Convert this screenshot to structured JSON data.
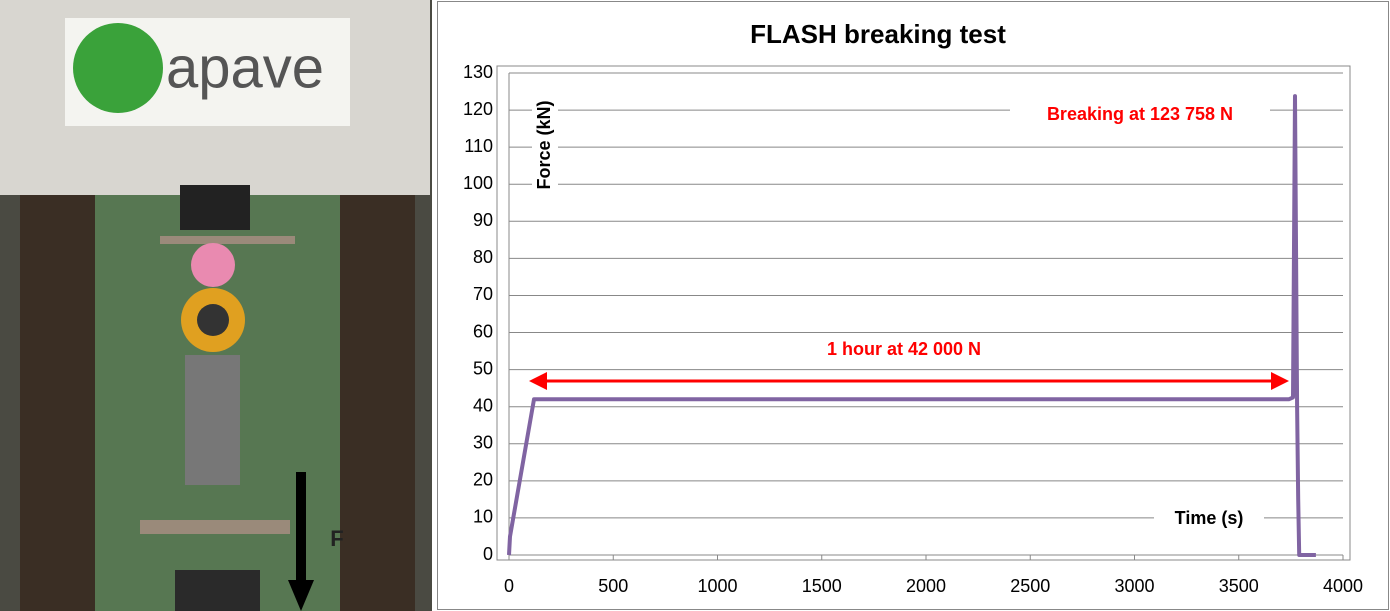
{
  "photo": {
    "logo_text": "apave",
    "force_label": "F"
  },
  "chart_data": {
    "type": "line",
    "title": "FLASH breaking test",
    "x_label": "Time (s)",
    "y_label": "Force (kN)",
    "annotations": [
      "Breaking at 123 758 N",
      "1 hour at 42 000 N"
    ],
    "x": [
      0,
      5,
      120,
      500,
      1000,
      1500,
      2000,
      2500,
      3000,
      3500,
      3740,
      3760,
      3770,
      3780,
      3785,
      3790,
      3800,
      3870
    ],
    "series": [
      {
        "name": "Force",
        "color": "#8064a2",
        "values": [
          0,
          5,
          42,
          42,
          42,
          42,
          42,
          42,
          42,
          42,
          42,
          42.5,
          123.758,
          40,
          15,
          0,
          0,
          0
        ]
      }
    ],
    "xlim": [
      0,
      4000
    ],
    "xticks": [
      0,
      500,
      1000,
      1500,
      2000,
      2500,
      3000,
      3500,
      4000
    ],
    "ylim": [
      0,
      130
    ],
    "yticks": [
      0,
      10,
      20,
      30,
      40,
      50,
      60,
      70,
      80,
      90,
      100,
      110,
      120,
      130
    ],
    "grid": true,
    "annotation_color": "#ff0000"
  }
}
